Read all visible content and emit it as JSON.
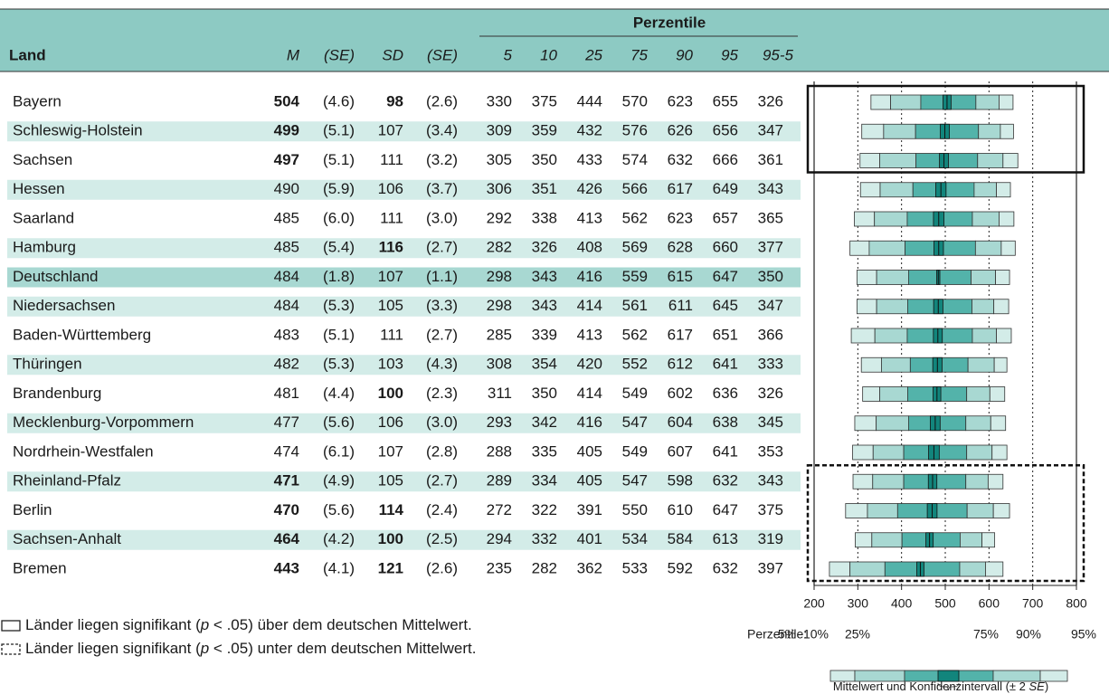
{
  "header": {
    "group": "Perzentile",
    "columns": [
      "Land",
      "M",
      "(SE)",
      "SD",
      "(SE)",
      "5",
      "10",
      "25",
      "75",
      "90",
      "95",
      "95-5"
    ]
  },
  "rows": [
    {
      "land": "Bayern",
      "m": 504,
      "m_bold": true,
      "se_m": {
        "value": 4.6,
        "label": "(4.6)"
      },
      "sd": 98,
      "sd_bold": true,
      "se_sd": "(2.6)",
      "p": [
        330,
        375,
        444,
        570,
        623,
        655,
        326
      ],
      "shade": "none",
      "frame": "solid"
    },
    {
      "land": "Schleswig-Holstein",
      "m": 499,
      "m_bold": true,
      "se_m": {
        "value": 5.1,
        "label": "(5.1)"
      },
      "sd": 107,
      "sd_bold": false,
      "se_sd": "(3.4)",
      "p": [
        309,
        359,
        432,
        576,
        626,
        656,
        347
      ],
      "shade": "light",
      "frame": "solid"
    },
    {
      "land": "Sachsen",
      "m": 497,
      "m_bold": true,
      "se_m": {
        "value": 5.1,
        "label": "(5.1)"
      },
      "sd": 111,
      "sd_bold": false,
      "se_sd": "(3.2)",
      "p": [
        305,
        350,
        433,
        574,
        632,
        666,
        361
      ],
      "shade": "none",
      "frame": "solid"
    },
    {
      "land": "Hessen",
      "m": 490,
      "m_bold": false,
      "se_m": {
        "value": 5.9,
        "label": "(5.9)"
      },
      "sd": 106,
      "sd_bold": false,
      "se_sd": "(3.7)",
      "p": [
        306,
        351,
        426,
        566,
        617,
        649,
        343
      ],
      "shade": "light",
      "frame": "none"
    },
    {
      "land": "Saarland",
      "m": 485,
      "m_bold": false,
      "se_m": {
        "value": 6.0,
        "label": "(6.0)"
      },
      "sd": 111,
      "sd_bold": false,
      "se_sd": "(3.0)",
      "p": [
        292,
        338,
        413,
        562,
        623,
        657,
        365
      ],
      "shade": "none",
      "frame": "none"
    },
    {
      "land": "Hamburg",
      "m": 485,
      "m_bold": false,
      "se_m": {
        "value": 5.4,
        "label": "(5.4)"
      },
      "sd": 116,
      "sd_bold": true,
      "se_sd": "(2.7)",
      "p": [
        282,
        326,
        408,
        569,
        628,
        660,
        377
      ],
      "shade": "light",
      "frame": "none"
    },
    {
      "land": "Deutschland",
      "m": 484,
      "m_bold": false,
      "se_m": {
        "value": 1.8,
        "label": "(1.8)"
      },
      "sd": 107,
      "sd_bold": false,
      "se_sd": "(1.1)",
      "p": [
        298,
        343,
        416,
        559,
        615,
        647,
        350
      ],
      "shade": "dark",
      "frame": "none"
    },
    {
      "land": "Niedersachsen",
      "m": 484,
      "m_bold": false,
      "se_m": {
        "value": 5.3,
        "label": "(5.3)"
      },
      "sd": 105,
      "sd_bold": false,
      "se_sd": "(3.3)",
      "p": [
        298,
        343,
        414,
        561,
        611,
        645,
        347
      ],
      "shade": "light",
      "frame": "none"
    },
    {
      "land": "Baden-Württemberg",
      "m": 483,
      "m_bold": false,
      "se_m": {
        "value": 5.1,
        "label": "(5.1)"
      },
      "sd": 111,
      "sd_bold": false,
      "se_sd": "(2.7)",
      "p": [
        285,
        339,
        413,
        562,
        617,
        651,
        366
      ],
      "shade": "none",
      "frame": "none"
    },
    {
      "land": "Thüringen",
      "m": 482,
      "m_bold": false,
      "se_m": {
        "value": 5.3,
        "label": "(5.3)"
      },
      "sd": 103,
      "sd_bold": false,
      "se_sd": "(4.3)",
      "p": [
        308,
        354,
        420,
        552,
        612,
        641,
        333
      ],
      "shade": "light",
      "frame": "none"
    },
    {
      "land": "Brandenburg",
      "m": 481,
      "m_bold": false,
      "se_m": {
        "value": 4.4,
        "label": "(4.4)"
      },
      "sd": 100,
      "sd_bold": true,
      "se_sd": "(2.3)",
      "p": [
        311,
        350,
        414,
        549,
        602,
        636,
        326
      ],
      "shade": "none",
      "frame": "none"
    },
    {
      "land": "Mecklenburg-Vorpommern",
      "m": 477,
      "m_bold": false,
      "se_m": {
        "value": 5.6,
        "label": "(5.6)"
      },
      "sd": 106,
      "sd_bold": false,
      "se_sd": "(3.0)",
      "p": [
        293,
        342,
        416,
        547,
        604,
        638,
        345
      ],
      "shade": "light",
      "frame": "none"
    },
    {
      "land": "Nordrhein-Westfalen",
      "m": 474,
      "m_bold": false,
      "se_m": {
        "value": 6.1,
        "label": "(6.1)"
      },
      "sd": 107,
      "sd_bold": false,
      "se_sd": "(2.8)",
      "p": [
        288,
        335,
        405,
        549,
        607,
        641,
        353
      ],
      "shade": "none",
      "frame": "none"
    },
    {
      "land": "Rheinland-Pfalz",
      "m": 471,
      "m_bold": true,
      "se_m": {
        "value": 4.9,
        "label": "(4.9)"
      },
      "sd": 105,
      "sd_bold": false,
      "se_sd": "(2.7)",
      "p": [
        289,
        334,
        405,
        547,
        598,
        632,
        343
      ],
      "shade": "light",
      "frame": "dashed"
    },
    {
      "land": "Berlin",
      "m": 470,
      "m_bold": true,
      "se_m": {
        "value": 5.6,
        "label": "(5.6)"
      },
      "sd": 114,
      "sd_bold": true,
      "se_sd": "(2.4)",
      "p": [
        272,
        322,
        391,
        550,
        610,
        647,
        375
      ],
      "shade": "none",
      "frame": "dashed"
    },
    {
      "land": "Sachsen-Anhalt",
      "m": 464,
      "m_bold": true,
      "se_m": {
        "value": 4.2,
        "label": "(4.2)"
      },
      "sd": 100,
      "sd_bold": true,
      "se_sd": "(2.5)",
      "p": [
        294,
        332,
        401,
        534,
        584,
        613,
        319
      ],
      "shade": "light",
      "frame": "dashed"
    },
    {
      "land": "Bremen",
      "m": 443,
      "m_bold": true,
      "se_m": {
        "value": 4.1,
        "label": "(4.1)"
      },
      "sd": 121,
      "sd_bold": true,
      "se_sd": "(2.6)",
      "p": [
        235,
        282,
        362,
        533,
        592,
        632,
        397
      ],
      "shade": "none",
      "frame": "dashed"
    }
  ],
  "axis": {
    "xlim": [
      200,
      800
    ],
    "xticks": [
      200,
      300,
      400,
      500,
      600,
      700,
      800
    ]
  },
  "legend": {
    "above": {
      "pre": "Länder liegen signifikant (",
      "italic": "p",
      "post": " < .05) über dem deutschen Mittelwert."
    },
    "below": {
      "pre": "Länder liegen signifikant (",
      "italic": "p",
      "post": " < .05) unter dem deutschen Mittelwert."
    }
  },
  "key": {
    "title": "Perzentile:",
    "labels": [
      "5%",
      "10%",
      "25%",
      "75%",
      "90%",
      "95%"
    ],
    "caption_pre": "Mittelwert und Konfidenzintervall (± 2 ",
    "caption_italic": "SE",
    "caption_post": ")"
  }
}
